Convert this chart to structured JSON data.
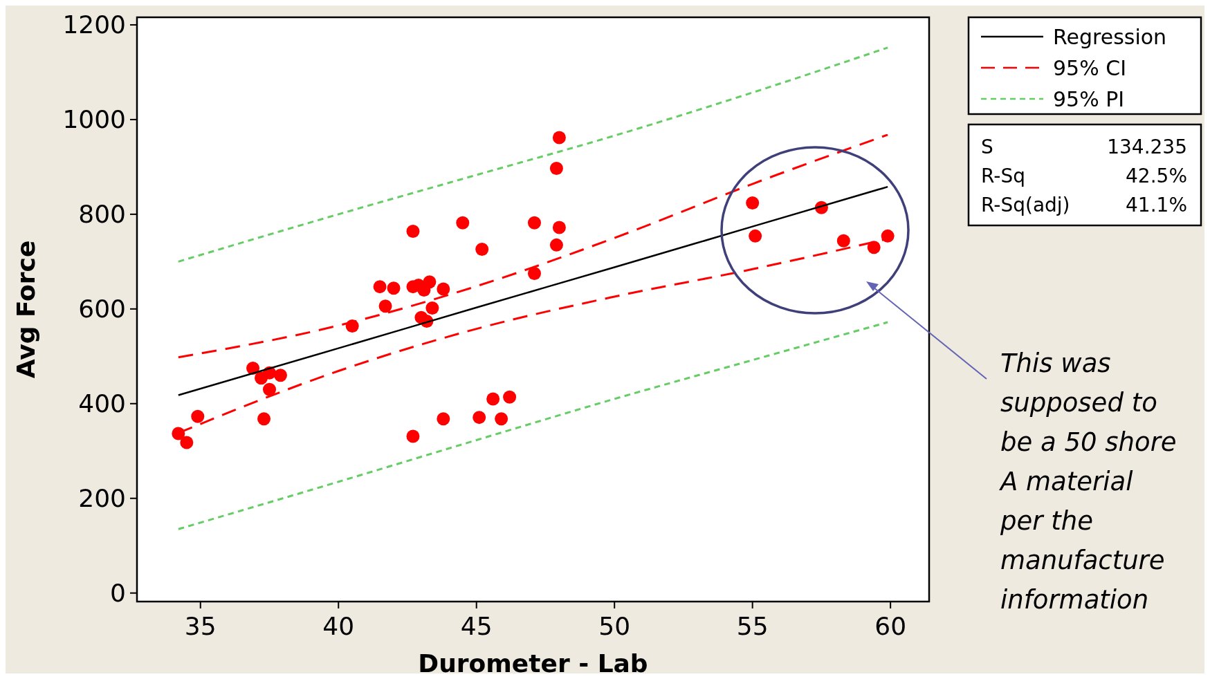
{
  "chart_data": {
    "type": "scatter",
    "xlabel": "Durometer - Lab",
    "ylabel": "Avg Force",
    "xlim": [
      32.7,
      61.4
    ],
    "ylim": [
      -18,
      1216
    ],
    "xticks": [
      35,
      40,
      45,
      50,
      55,
      60
    ],
    "yticks": [
      0,
      200,
      400,
      600,
      800,
      1000,
      1200
    ],
    "grid": false,
    "legend": "top right",
    "annotations": [
      "This was\nsupposed to\nbe a 50 shore\nA material\nper the\nmanufacture\ninformation",
      "S",
      "134.235",
      "R-Sq",
      "42.5%",
      "R-Sq(adj)",
      "41.1%"
    ],
    "series": [
      {
        "marker": "circle",
        "color": "#ff0000",
        "x": [
          34.2,
          34.5,
          34.9,
          36.9,
          37.2,
          37.5,
          37.5,
          37.9,
          37.3,
          40.5,
          41.5,
          41.7,
          42.0,
          42.7,
          42.7,
          42.7,
          42.9,
          43.1,
          43.3,
          43.0,
          43.2,
          43.4,
          43.8,
          43.8,
          44.5,
          45.1,
          45.2,
          45.6,
          45.9,
          46.2,
          47.1,
          47.1,
          47.9,
          48.0,
          48.0,
          47.9,
          55.0,
          55.1,
          57.5,
          58.3,
          59.4,
          59.9
        ],
        "values": [
          337,
          318,
          373,
          475,
          454,
          465,
          430,
          460,
          368,
          564,
          647,
          606,
          644,
          331,
          764,
          647,
          650,
          640,
          657,
          582,
          574,
          602,
          642,
          368,
          782,
          371,
          726,
          410,
          368,
          414,
          782,
          675,
          897,
          962,
          772,
          735,
          824,
          754,
          814,
          744,
          730,
          754
        ]
      },
      {
        "type": "line",
        "name": "Regression",
        "color": "#000000",
        "line_style": "solid",
        "x": [
          34.2,
          40,
          45,
          50,
          55,
          59.9
        ],
        "values": [
          418,
          517,
          603,
          688,
          774,
          858
        ]
      },
      {
        "type": "line",
        "name": "95% CI",
        "color": "#ff0000",
        "line_style": "dashed",
        "x": [
          34.2,
          40,
          45,
          50,
          55,
          59.9
        ],
        "values": [
          498,
          565,
          648,
          750,
          864,
          968
        ]
      },
      {
        "type": "line",
        "color": "#ff0000",
        "line_style": "dashed",
        "x": [
          34.2,
          40,
          45,
          50,
          55,
          59.9
        ],
        "values": [
          338,
          469,
          558,
          626,
          684,
          748
        ]
      },
      {
        "type": "line",
        "name": "95% PI",
        "color": "#66cc66",
        "line_style": "dotted",
        "x": [
          34.2,
          40,
          45,
          50,
          55,
          59.9
        ],
        "values": [
          700,
          800,
          883,
          966,
          1057,
          1152
        ]
      },
      {
        "type": "line",
        "color": "#66cc66",
        "line_style": "dotted",
        "x": [
          34.2,
          40,
          45,
          50,
          55,
          59.9
        ],
        "values": [
          135,
          235,
          323,
          410,
          492,
          572
        ]
      }
    ]
  }
}
